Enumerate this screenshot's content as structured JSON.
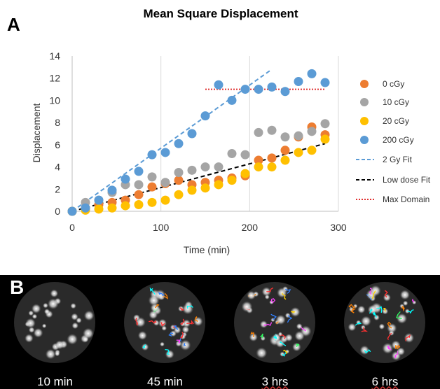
{
  "panel_a_label": "A",
  "panel_b_label": "B",
  "chart_data": {
    "type": "scatter",
    "title": "Mean Square Displacement",
    "xlabel": "Time (min)",
    "ylabel": "Displacement",
    "xlim": [
      0,
      300
    ],
    "ylim": [
      0,
      14
    ],
    "xticks": [
      "0",
      "100",
      "200",
      "300"
    ],
    "yticks": [
      "0",
      "2",
      "4",
      "6",
      "8",
      "10",
      "12",
      "14"
    ],
    "grid": "vertical",
    "legend_position": "right",
    "series": [
      {
        "name": "0 cGy",
        "color": "#ED7D31",
        "kind": "points",
        "x": [
          0,
          15,
          30,
          45,
          60,
          75,
          90,
          105,
          120,
          135,
          150,
          165,
          180,
          195,
          210,
          225,
          240,
          255,
          270,
          285
        ],
        "y": [
          0,
          0.3,
          0.6,
          0.8,
          1.0,
          1.5,
          2.2,
          2.5,
          2.8,
          2.4,
          2.6,
          2.8,
          3.0,
          3.2,
          4.6,
          4.8,
          5.5,
          6.7,
          7.6,
          6.9
        ]
      },
      {
        "name": "10 cGy",
        "color": "#A5A5A5",
        "kind": "points",
        "x": [
          0,
          15,
          30,
          45,
          60,
          75,
          90,
          105,
          120,
          135,
          150,
          165,
          180,
          195,
          210,
          225,
          240,
          255,
          270,
          285
        ],
        "y": [
          0,
          0.8,
          1.0,
          1.7,
          2.4,
          2.4,
          3.1,
          2.6,
          3.5,
          3.7,
          4.0,
          4.0,
          5.2,
          5.1,
          7.1,
          7.3,
          6.7,
          6.8,
          7.2,
          7.9
        ]
      },
      {
        "name": "20 cGy",
        "color": "#FFC000",
        "kind": "points",
        "x": [
          0,
          15,
          30,
          45,
          60,
          75,
          90,
          105,
          120,
          135,
          150,
          165,
          180,
          195,
          210,
          225,
          240,
          255,
          270,
          285
        ],
        "y": [
          0,
          0.1,
          0.2,
          0.3,
          0.5,
          0.6,
          0.8,
          1.0,
          1.5,
          1.9,
          2.1,
          2.4,
          2.8,
          3.4,
          4.0,
          4.0,
          4.6,
          5.3,
          5.5,
          6.5
        ]
      },
      {
        "name": "200 cGy",
        "color": "#5B9BD5",
        "kind": "points",
        "x": [
          0,
          15,
          30,
          45,
          60,
          75,
          90,
          105,
          120,
          135,
          150,
          165,
          180,
          195,
          210,
          225,
          240,
          255,
          270,
          285
        ],
        "y": [
          0,
          0.3,
          1.0,
          1.9,
          2.9,
          3.6,
          5.1,
          5.3,
          6.1,
          7.0,
          8.6,
          11.4,
          10.0,
          11.0,
          11.0,
          11.2,
          10.8,
          11.7,
          12.4,
          11.6
        ]
      },
      {
        "name": "2 Gy Fit",
        "color": "#5B9BD5",
        "kind": "dashed-line",
        "x": [
          0,
          225
        ],
        "y": [
          0,
          12.8
        ]
      },
      {
        "name": "Low dose Fit",
        "color": "#000000",
        "kind": "dashed-line",
        "x": [
          0,
          285
        ],
        "y": [
          0,
          6.1
        ]
      },
      {
        "name": "Max Domain",
        "color": "#E03030",
        "kind": "dotted-line",
        "x": [
          150,
          285
        ],
        "y": [
          11.0,
          11.0
        ]
      }
    ]
  },
  "micrographs": [
    {
      "time_label": "10 min",
      "underline": false
    },
    {
      "time_label": "45 min",
      "underline": false
    },
    {
      "time_label": "3 hrs",
      "underline": true
    },
    {
      "time_label": "6 hrs",
      "underline": true
    }
  ]
}
